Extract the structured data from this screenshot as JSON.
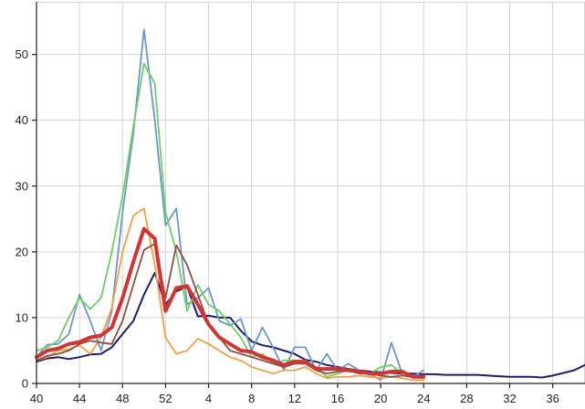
{
  "chart_data": {
    "type": "line",
    "title": "",
    "xlabel": "",
    "ylabel": "",
    "grid": true,
    "legend": "none",
    "x_ticks": [
      "40",
      "44",
      "48",
      "52",
      "4",
      "8",
      "12",
      "16",
      "20",
      "24",
      "28",
      "32",
      "36"
    ],
    "y_ticks": [
      "0",
      "10",
      "20",
      "30",
      "40",
      "50"
    ],
    "ylim": [
      0,
      58
    ],
    "xlim": [
      40,
      91
    ],
    "x_note": "x values are consecutive week numbers; weeks 40-52 then 1-39 of the following year",
    "series": [
      {
        "color": "#1a1f6e",
        "width": 2,
        "x": [
          40,
          41,
          42,
          43,
          44,
          45,
          46,
          47,
          48,
          49,
          50,
          51,
          52,
          53,
          54,
          55,
          56,
          57,
          58,
          59,
          60,
          61,
          62,
          63,
          64,
          65,
          66,
          67,
          68,
          69,
          70,
          71,
          72,
          73,
          74,
          75,
          76,
          77,
          78,
          79,
          80,
          81,
          82,
          83,
          84,
          85,
          86,
          87,
          88,
          89,
          90,
          91
        ],
        "y": [
          3.3,
          3.8,
          4.0,
          3.7,
          4.0,
          4.4,
          4.5,
          5.5,
          7.5,
          9.5,
          13.5,
          16.8,
          12.0,
          14.0,
          14.7,
          10.2,
          10.3,
          10.0,
          10.0,
          8.0,
          6.4,
          5.8,
          5.5,
          5.0,
          4.5,
          3.6,
          3.3,
          2.8,
          2.5,
          2.2,
          2.0,
          1.8,
          1.7,
          1.6,
          1.5,
          1.5,
          1.4,
          1.4,
          1.3,
          1.3,
          1.3,
          1.3,
          1.2,
          1.1,
          1.0,
          1.0,
          1.0,
          0.9,
          1.2,
          1.6,
          2.0,
          2.8
        ]
      },
      {
        "color": "#6b96d0",
        "width": 1.8,
        "x": [
          40,
          41,
          42,
          43,
          44,
          45,
          46,
          47,
          48,
          49,
          50,
          51,
          52,
          53,
          54,
          55,
          56,
          57,
          58,
          59,
          60,
          61,
          62,
          63,
          64,
          65,
          66,
          67,
          68,
          69,
          70,
          71,
          72,
          73,
          74,
          75,
          76
        ],
        "y": [
          4.0,
          5.9,
          6.0,
          7.5,
          13.5,
          9.5,
          5.0,
          11.0,
          26.0,
          38.0,
          53.8,
          40.0,
          24.0,
          26.6,
          12.0,
          13.0,
          14.5,
          9.5,
          8.8,
          9.8,
          5.0,
          8.5,
          5.5,
          2.0,
          5.5,
          5.5,
          2.0,
          4.5,
          2.0,
          3.0,
          2.0,
          1.5,
          0.5,
          6.2,
          1.5,
          1.0,
          2.0
        ]
      },
      {
        "color": "#6ecf62",
        "width": 1.8,
        "x": [
          40,
          41,
          42,
          43,
          44,
          45,
          46,
          47,
          48,
          49,
          50,
          51,
          52,
          53,
          54,
          55,
          56,
          57,
          58,
          59,
          60,
          61,
          62,
          63,
          64,
          65,
          66,
          67,
          68,
          69,
          70,
          71,
          72,
          73,
          74,
          75,
          76
        ],
        "y": [
          5.0,
          5.5,
          6.5,
          10.0,
          13.0,
          11.3,
          13.0,
          20.0,
          28.5,
          39.0,
          48.6,
          45.6,
          26.0,
          20.0,
          11.0,
          15.0,
          12.0,
          11.0,
          9.0,
          7.0,
          4.0,
          4.5,
          3.0,
          3.5,
          3.5,
          3.5,
          2.5,
          1.0,
          1.5,
          2.0,
          2.0,
          1.5,
          2.5,
          2.8,
          1.5,
          1.0,
          0.8
        ]
      },
      {
        "color": "#f5a043",
        "width": 1.8,
        "x": [
          40,
          41,
          42,
          43,
          44,
          45,
          46,
          47,
          48,
          49,
          50,
          51,
          52,
          53,
          54,
          55,
          56,
          57,
          58,
          59,
          60,
          61,
          62,
          63,
          64,
          65,
          66,
          67,
          68,
          69,
          70,
          71,
          72,
          73,
          74,
          75,
          76
        ],
        "y": [
          3.5,
          4.0,
          5.0,
          5.2,
          5.8,
          4.5,
          7.0,
          11.5,
          20.0,
          25.5,
          26.6,
          18.0,
          7.0,
          4.5,
          5.0,
          6.8,
          6.0,
          5.0,
          4.0,
          3.5,
          2.5,
          2.0,
          1.5,
          2.0,
          2.0,
          2.5,
          1.5,
          0.8,
          1.0,
          1.0,
          1.2,
          1.0,
          0.8,
          1.0,
          0.8,
          0.5,
          0.5
        ]
      },
      {
        "color": "#8a5145",
        "width": 1.8,
        "x": [
          40,
          41,
          42,
          43,
          44,
          45,
          46,
          47,
          48,
          49,
          50,
          51,
          52,
          53,
          54,
          55,
          56,
          57,
          58,
          59,
          60,
          61,
          62,
          63,
          64,
          65,
          66,
          67,
          68,
          69,
          70,
          71,
          72,
          73,
          74,
          75,
          76
        ],
        "y": [
          3.5,
          4.2,
          4.5,
          5.0,
          6.0,
          6.5,
          6.2,
          6.0,
          9.5,
          15.0,
          20.3,
          21.2,
          13.0,
          21.0,
          18.0,
          13.5,
          9.0,
          7.0,
          5.0,
          4.5,
          4.0,
          3.5,
          3.0,
          2.5,
          3.0,
          3.0,
          2.0,
          1.5,
          1.8,
          2.0,
          1.5,
          1.5,
          1.2,
          1.0,
          1.2,
          1.0,
          1.2
        ]
      },
      {
        "color": "#d63232",
        "width": 4,
        "x": [
          40,
          41,
          42,
          43,
          44,
          45,
          46,
          47,
          48,
          49,
          50,
          51,
          52,
          53,
          54,
          55,
          56,
          57,
          58,
          59,
          60,
          61,
          62,
          63,
          64,
          65,
          66,
          67,
          68,
          69,
          70,
          71,
          72,
          73,
          74,
          75,
          76
        ],
        "y": [
          4.0,
          5.0,
          5.3,
          6.0,
          6.3,
          7.0,
          7.3,
          8.5,
          13.0,
          18.5,
          23.5,
          22.0,
          11.0,
          14.5,
          14.8,
          12.0,
          9.0,
          7.0,
          6.0,
          5.0,
          4.8,
          4.0,
          3.5,
          2.8,
          3.3,
          3.3,
          2.2,
          2.2,
          2.2,
          2.0,
          1.8,
          1.5,
          1.5,
          1.8,
          1.8,
          1.0,
          1.0
        ]
      }
    ]
  }
}
